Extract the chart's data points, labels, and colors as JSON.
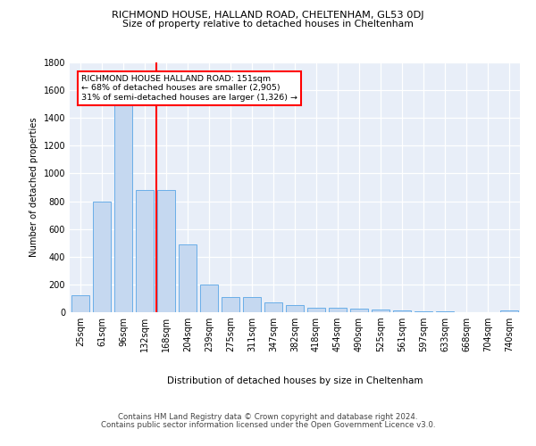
{
  "title1": "RICHMOND HOUSE, HALLAND ROAD, CHELTENHAM, GL53 0DJ",
  "title2": "Size of property relative to detached houses in Cheltenham",
  "xlabel": "Distribution of detached houses by size in Cheltenham",
  "ylabel": "Number of detached properties",
  "categories": [
    "25sqm",
    "61sqm",
    "96sqm",
    "132sqm",
    "168sqm",
    "204sqm",
    "239sqm",
    "275sqm",
    "311sqm",
    "347sqm",
    "382sqm",
    "418sqm",
    "454sqm",
    "490sqm",
    "525sqm",
    "561sqm",
    "597sqm",
    "633sqm",
    "668sqm",
    "704sqm",
    "740sqm"
  ],
  "values": [
    120,
    800,
    1500,
    880,
    880,
    490,
    200,
    110,
    110,
    70,
    50,
    35,
    30,
    25,
    20,
    10,
    8,
    5,
    3,
    2,
    15
  ],
  "bar_color": "#c5d8f0",
  "bar_edge_color": "#6aaee8",
  "red_line_x": 3.55,
  "annotation_title": "RICHMOND HOUSE HALLAND ROAD: 151sqm",
  "annotation_line1": "← 68% of detached houses are smaller (2,905)",
  "annotation_line2": "31% of semi-detached houses are larger (1,326) →",
  "background_color": "#e8eef8",
  "ylim": [
    0,
    1800
  ],
  "yticks": [
    0,
    200,
    400,
    600,
    800,
    1000,
    1200,
    1400,
    1600,
    1800
  ],
  "footer1": "Contains HM Land Registry data © Crown copyright and database right 2024.",
  "footer2": "Contains public sector information licensed under the Open Government Licence v3.0."
}
